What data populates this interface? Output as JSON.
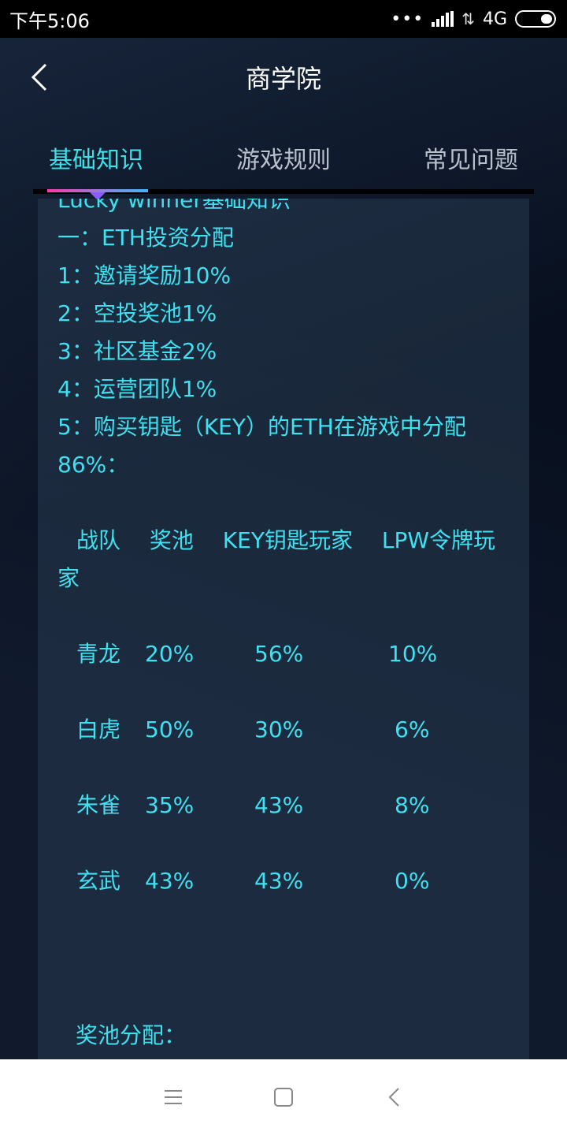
{
  "status_bar": {
    "time": "下午5:06",
    "network": "4G"
  },
  "header": {
    "title": "商学院"
  },
  "tabs": [
    {
      "label": "基础知识",
      "active": true
    },
    {
      "label": "游戏规则",
      "active": false
    },
    {
      "label": "常见问题",
      "active": false
    }
  ],
  "article": {
    "heading": "Lucky winner基础知识",
    "section1": "一：ETH投资分配",
    "items": [
      "1：邀请奖励10%",
      "2：空投奖池1%",
      "3：社区基金2%",
      "4：运营团队1%"
    ],
    "item5": "5：购买钥匙（KEY）的ETH在游戏中分配86%：",
    "table_header": "战队　 奖池　 KEY钥匙玩家　 LPW令牌玩家",
    "rows": [
      [
        "青龙",
        "20%",
        "56%",
        "10%"
      ],
      [
        "白虎",
        "50%",
        "30%",
        "6%"
      ],
      [
        "朱雀",
        "35%",
        "43%",
        "8%"
      ],
      [
        "玄武",
        "43%",
        "43%",
        "0%"
      ]
    ],
    "pool_title": "奖池分配："
  },
  "colors": {
    "accent": "#3fe0f0",
    "tab_active": "#3fe0e8",
    "indicator_start": "#ff3aa8",
    "indicator_end": "#3ab8ff"
  }
}
